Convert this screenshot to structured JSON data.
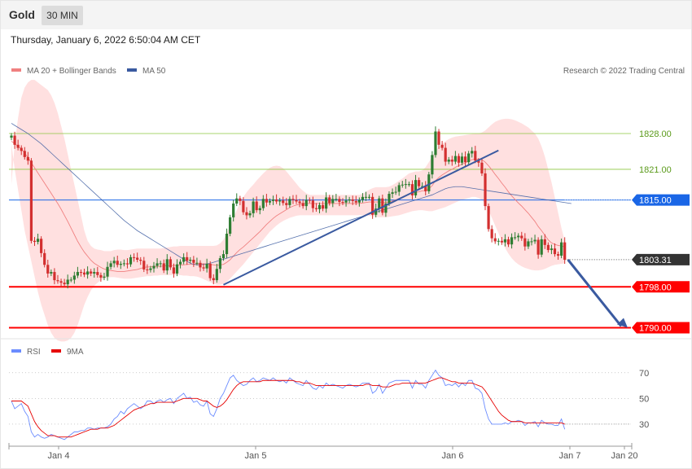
{
  "header": {
    "instrument": "Gold",
    "timeframe": "30 MIN",
    "datetime": "Thursday, January 6, 2022 6:50:04 AM CET"
  },
  "legend": {
    "ma20_label": "MA 20 + Bollinger Bands",
    "ma50_label": "MA 50",
    "copyright": "Research © 2022 Trading Central",
    "rsi_label": "RSI",
    "rsi_ma_label": "9MA"
  },
  "colors": {
    "bullish": "#2e7d32",
    "bearish": "#d32f2f",
    "ma20": "#f08080",
    "ma50": "#3a5aa0",
    "bands": "#ffd6d6",
    "support": "#ff0000",
    "pivot": "#1a66e6",
    "resistance": "#8cc63f",
    "trendline": "#3a5aa0",
    "rsi": "#6b8cff",
    "rsi_ma": "#e60000"
  },
  "levels": [
    {
      "value": "1828.00",
      "kind": "resistance"
    },
    {
      "value": "1821.00",
      "kind": "resistance"
    },
    {
      "value": "1815.00",
      "kind": "pivot"
    },
    {
      "value": "1803.31",
      "kind": "last"
    },
    {
      "value": "1798.00",
      "kind": "support"
    },
    {
      "value": "1790.00",
      "kind": "support"
    }
  ],
  "x_labels": [
    "Jan 4",
    "Jan 5",
    "Jan 6",
    "Jan 7",
    "Jan 20"
  ],
  "rsi_levels": [
    "70",
    "50",
    "30"
  ],
  "chart_data": {
    "type": "candlestick",
    "ylim": [
      1788,
      1839
    ],
    "rsi_ylim": [
      16,
      80
    ],
    "close": [
      1827.6,
      1825.8,
      1825.2,
      1824.6,
      1823.4,
      1822.7,
      1807.0,
      1806.8,
      1807.4,
      1804.6,
      1802.3,
      1800.6,
      1800.9,
      1799.3,
      1799.1,
      1798.8,
      1798.5,
      1799.4,
      1799.4,
      1800.2,
      1800.9,
      1800.8,
      1800.4,
      1801.0,
      1800.6,
      1800.9,
      1800.3,
      1799.8,
      1800.0,
      1801.9,
      1802.6,
      1803.1,
      1802.3,
      1802.5,
      1802.6,
      1802.4,
      1803.8,
      1803.7,
      1803.3,
      1803.1,
      1801.4,
      1801.3,
      1801.6,
      1802.1,
      1802.6,
      1802.6,
      1801.2,
      1803.4,
      1801.8,
      1800.6,
      1802.4,
      1802.9,
      1803.8,
      1803.1,
      1803.3,
      1802.7,
      1802.7,
      1801.8,
      1801.6,
      1802.5,
      1799.7,
      1799.3,
      1801.5,
      1803.6,
      1804.4,
      1808.4,
      1811.6,
      1814.3,
      1815.3,
      1814.8,
      1812.6,
      1812.0,
      1812.4,
      1814.7,
      1813.0,
      1813.4,
      1815.2,
      1814.5,
      1814.8,
      1815.1,
      1814.7,
      1814.9,
      1814.4,
      1814.0,
      1815.2,
      1815.0,
      1814.7,
      1814.4,
      1813.8,
      1815.0,
      1814.9,
      1813.4,
      1813.2,
      1814.0,
      1813.3,
      1815.5,
      1814.4,
      1815.2,
      1815.2,
      1814.6,
      1814.5,
      1814.9,
      1815.1,
      1814.8,
      1814.5,
      1815.0,
      1815.6,
      1815.6,
      1815.6,
      1812.1,
      1813.3,
      1815.3,
      1812.5,
      1814.3,
      1816.2,
      1816.5,
      1816.6,
      1817.9,
      1818.0,
      1818.1,
      1818.1,
      1815.9,
      1818.9,
      1817.7,
      1817.7,
      1816.7,
      1820.0,
      1823.8,
      1828.4,
      1825.8,
      1825.2,
      1822.5,
      1822.9,
      1822.5,
      1823.6,
      1822.3,
      1823.5,
      1822.4,
      1824.1,
      1824.6,
      1822.7,
      1822.3,
      1820.2,
      1813.8,
      1809.3,
      1807.5,
      1806.9,
      1807.0,
      1806.7,
      1807.3,
      1806.3,
      1807.7,
      1807.7,
      1808.0,
      1807.5,
      1805.9,
      1806.9,
      1806.9,
      1807.2,
      1804.3,
      1807.3,
      1806.2,
      1805.2,
      1805.5,
      1804.4,
      1804.1,
      1806.7,
      1803.3
    ],
    "open_first": 1827.2,
    "ma20": [
      1826.5,
      1826.0,
      1825.5,
      1825.0,
      1824.2,
      1823.3,
      1822.3,
      1821.3,
      1820.3,
      1819.3,
      1818.3,
      1817.3,
      1816.3,
      1815.3,
      1814.3,
      1813.2,
      1812.0,
      1810.8,
      1809.5,
      1808.2,
      1806.9,
      1805.8,
      1804.8,
      1804.0,
      1803.2,
      1802.6,
      1802.2,
      1801.8,
      1801.5,
      1801.3,
      1801.2,
      1801.1,
      1801.0,
      1801.0,
      1801.0,
      1801.1,
      1801.2,
      1801.3,
      1801.4,
      1801.6,
      1801.8,
      1801.9,
      1801.9,
      1802.0,
      1802.0,
      1802.0,
      1802.1,
      1802.1,
      1802.1,
      1802.2,
      1802.2,
      1802.3,
      1802.3,
      1802.4,
      1802.4,
      1802.5,
      1802.5,
      1802.5,
      1802.5,
      1802.5,
      1802.4,
      1802.3,
      1802.2,
      1802.3,
      1802.4,
      1802.8,
      1803.3,
      1804.0,
      1804.7,
      1805.3,
      1805.8,
      1806.4,
      1807.0,
      1807.6,
      1808.2,
      1808.8,
      1809.5,
      1810.2,
      1810.8,
      1811.4,
      1811.9,
      1812.3,
      1812.7,
      1813.1,
      1813.5,
      1813.8,
      1814.0,
      1814.2,
      1814.3,
      1814.3,
      1814.3,
      1814.3,
      1814.3,
      1814.3,
      1814.3,
      1814.3,
      1814.3,
      1814.3,
      1814.3,
      1814.3,
      1814.3,
      1814.3,
      1814.3,
      1814.3,
      1814.3,
      1814.3,
      1814.4,
      1814.5,
      1814.6,
      1814.6,
      1814.6,
      1814.6,
      1814.5,
      1814.5,
      1814.6,
      1814.8,
      1815.0,
      1815.3,
      1815.6,
      1815.9,
      1816.2,
      1816.3,
      1816.5,
      1816.6,
      1816.8,
      1816.8,
      1817.2,
      1817.8,
      1818.8,
      1819.4,
      1819.9,
      1820.3,
      1820.7,
      1821.0,
      1821.4,
      1821.7,
      1822.0,
      1822.3,
      1822.6,
      1822.9,
      1823.0,
      1823.0,
      1822.9,
      1822.4,
      1821.7,
      1820.9,
      1820.0,
      1819.2,
      1818.3,
      1817.5,
      1816.6,
      1815.8,
      1815.1,
      1814.4,
      1813.8,
      1813.1,
      1812.4,
      1811.6,
      1810.8,
      1809.8,
      1809.0,
      1808.1,
      1807.2,
      1806.6,
      1806.3,
      1806.1,
      1806.0,
      1805.8
    ],
    "ma50": [
      1830.0,
      1829.6,
      1829.2,
      1828.8,
      1828.4,
      1828.0,
      1827.5,
      1827.0,
      1826.5,
      1826.0,
      1825.4,
      1824.8,
      1824.2,
      1823.6,
      1823.0,
      1822.4,
      1821.8,
      1821.2,
      1820.6,
      1820.0,
      1819.4,
      1818.8,
      1818.2,
      1817.6,
      1817.0,
      1816.4,
      1815.8,
      1815.2,
      1814.6,
      1814.0,
      1813.4,
      1812.8,
      1812.2,
      1811.6,
      1811.0,
      1810.5,
      1810.0,
      1809.5,
      1809.0,
      1808.6,
      1808.2,
      1807.8,
      1807.4,
      1807.0,
      1806.6,
      1806.2,
      1805.8,
      1805.4,
      1805.0,
      1804.6,
      1804.2,
      1803.8,
      1803.4,
      1803.0,
      1802.6,
      1802.4,
      1802.3,
      1802.3,
      1802.4,
      1802.5,
      1802.6,
      1802.8,
      1803.0,
      1803.2,
      1803.4,
      1803.6,
      1803.8,
      1804.0,
      1804.2,
      1804.4,
      1804.6,
      1804.8,
      1805.0,
      1805.2,
      1805.4,
      1805.6,
      1805.8,
      1806.0,
      1806.2,
      1806.4,
      1806.6,
      1806.8,
      1807.0,
      1807.2,
      1807.4,
      1807.6,
      1807.8,
      1808.0,
      1808.2,
      1808.4,
      1808.6,
      1808.8,
      1809.0,
      1809.2,
      1809.4,
      1809.6,
      1809.8,
      1810.0,
      1810.2,
      1810.4,
      1810.6,
      1810.8,
      1811.0,
      1811.2,
      1811.4,
      1811.6,
      1811.8,
      1812.0,
      1812.2,
      1812.4,
      1812.6,
      1812.8,
      1813.0,
      1813.2,
      1813.4,
      1813.6,
      1813.8,
      1814.0,
      1814.2,
      1814.4,
      1814.6,
      1814.8,
      1815.0,
      1815.2,
      1815.4,
      1815.6,
      1815.8,
      1816.0,
      1816.3,
      1816.6,
      1816.9,
      1817.2,
      1817.4,
      1817.5,
      1817.6,
      1817.6,
      1817.6,
      1817.5,
      1817.4,
      1817.3,
      1817.2,
      1817.1,
      1817.0,
      1816.9,
      1816.8,
      1816.7,
      1816.6,
      1816.5,
      1816.4,
      1816.3,
      1816.2,
      1816.1,
      1816.0,
      1815.9,
      1815.8,
      1815.7,
      1815.6,
      1815.5,
      1815.4,
      1815.3,
      1815.2,
      1815.1,
      1815.0,
      1814.9,
      1814.8,
      1814.7,
      1814.6,
      1814.5,
      1814.4,
      1814.3
    ],
    "band_upper": [
      1818.0,
      1826.0,
      1831.0,
      1835.0,
      1837.0,
      1838.0,
      1838.5,
      1838.5,
      1838.0,
      1837.5,
      1837.0,
      1836.5,
      1835.5,
      1834.0,
      1832.0,
      1829.5,
      1827.0,
      1824.0,
      1821.0,
      1818.0,
      1815.0,
      1812.0,
      1809.0,
      1807.0,
      1806.0,
      1805.5,
      1805.3,
      1805.2,
      1805.0,
      1805.0,
      1805.0,
      1805.2,
      1805.3,
      1805.3,
      1805.2,
      1805.2,
      1805.3,
      1805.4,
      1805.5,
      1805.5,
      1805.5,
      1805.5,
      1805.5,
      1805.5,
      1805.5,
      1805.5,
      1805.6,
      1805.7,
      1805.8,
      1805.9,
      1805.9,
      1806.0,
      1806.0,
      1806.0,
      1806.0,
      1806.0,
      1806.0,
      1806.0,
      1806.0,
      1806.0,
      1806.0,
      1806.0,
      1806.1,
      1806.5,
      1807.2,
      1808.5,
      1810.0,
      1811.5,
      1813.0,
      1814.5,
      1815.6,
      1816.5,
      1817.3,
      1818.0,
      1818.8,
      1819.5,
      1820.2,
      1820.8,
      1821.3,
      1821.6,
      1821.7,
      1821.6,
      1821.2,
      1820.6,
      1819.8,
      1819.0,
      1818.2,
      1817.4,
      1816.8,
      1816.3,
      1816.0,
      1816.0,
      1816.0,
      1816.0,
      1816.0,
      1816.0,
      1816.0,
      1816.0,
      1816.0,
      1816.0,
      1816.0,
      1816.0,
      1816.0,
      1816.0,
      1816.0,
      1816.0,
      1816.2,
      1816.6,
      1817.0,
      1817.3,
      1817.5,
      1817.5,
      1817.5,
      1817.5,
      1817.6,
      1817.9,
      1818.3,
      1818.8,
      1819.2,
      1819.7,
      1820.2,
      1820.4,
      1820.6,
      1820.6,
      1820.8,
      1821.4,
      1822.4,
      1823.6,
      1824.6,
      1825.4,
      1826.0,
      1826.5,
      1826.9,
      1827.2,
      1827.4,
      1827.5,
      1827.6,
      1827.7,
      1827.8,
      1827.9,
      1828.0,
      1828.0,
      1828.2,
      1828.6,
      1829.2,
      1829.8,
      1830.3,
      1830.6,
      1830.8,
      1830.9,
      1830.9,
      1830.8,
      1830.6,
      1830.3,
      1830.0,
      1829.6,
      1829.2,
      1828.6,
      1828.0,
      1827.0,
      1825.5,
      1823.5,
      1821.0,
      1818.5,
      1815.5,
      1812.5,
      1809.5,
      1807.0
    ],
    "band_lower": [
      1826.0,
      1821.0,
      1817.0,
      1813.0,
      1809.0,
      1806.0,
      1803.0,
      1800.0,
      1797.0,
      1794.5,
      1792.5,
      1790.5,
      1789.0,
      1788.0,
      1787.5,
      1787.3,
      1787.3,
      1787.5,
      1788.0,
      1789.0,
      1790.5,
      1792.5,
      1794.5,
      1796.0,
      1797.3,
      1798.2,
      1798.8,
      1799.3,
      1799.6,
      1799.8,
      1799.9,
      1799.9,
      1799.8,
      1799.7,
      1799.6,
      1799.6,
      1799.6,
      1799.7,
      1799.8,
      1799.9,
      1800.0,
      1800.1,
      1800.1,
      1800.2,
      1800.2,
      1800.3,
      1800.3,
      1800.3,
      1800.3,
      1800.3,
      1800.3,
      1800.3,
      1800.2,
      1800.2,
      1800.1,
      1800.1,
      1800.0,
      1799.8,
      1799.5,
      1799.2,
      1798.9,
      1798.6,
      1798.4,
      1798.4,
      1798.6,
      1799.0,
      1799.6,
      1800.3,
      1801.0,
      1801.7,
      1802.4,
      1803.2,
      1804.0,
      1804.8,
      1805.6,
      1806.4,
      1807.2,
      1808.0,
      1808.8,
      1809.4,
      1810.0,
      1810.5,
      1810.9,
      1811.2,
      1811.5,
      1811.7,
      1811.9,
      1812.0,
      1812.0,
      1812.0,
      1812.0,
      1812.0,
      1812.0,
      1812.0,
      1812.0,
      1812.0,
      1812.0,
      1812.0,
      1812.0,
      1812.0,
      1812.0,
      1812.0,
      1812.0,
      1812.0,
      1812.0,
      1812.0,
      1812.0,
      1812.0,
      1811.9,
      1811.8,
      1811.7,
      1811.6,
      1811.6,
      1811.6,
      1811.7,
      1811.8,
      1811.9,
      1812.0,
      1812.2,
      1812.4,
      1812.6,
      1812.8,
      1812.9,
      1813.0,
      1813.0,
      1812.9,
      1812.8,
      1812.8,
      1813.0,
      1813.2,
      1813.4,
      1813.6,
      1813.9,
      1814.2,
      1814.5,
      1814.8,
      1815.0,
      1815.2,
      1815.4,
      1815.6,
      1815.6,
      1815.4,
      1815.0,
      1814.2,
      1813.0,
      1811.5,
      1810.0,
      1808.5,
      1807.0,
      1805.6,
      1804.5,
      1803.6,
      1802.9,
      1802.4,
      1802.0,
      1801.7,
      1801.5,
      1801.3,
      1801.2,
      1801.2,
      1801.3,
      1801.5,
      1801.8,
      1802.1,
      1802.3,
      1802.4,
      1802.5,
      1802.6
    ],
    "rsi": [
      48,
      42,
      44,
      46,
      40,
      36,
      24,
      20,
      22,
      20,
      19,
      20,
      22,
      21,
      20,
      19,
      18,
      20,
      22,
      24,
      24,
      25,
      25,
      27,
      27,
      26,
      27,
      27,
      27,
      28,
      30,
      34,
      36,
      40,
      38,
      42,
      44,
      46,
      44,
      42,
      44,
      48,
      48,
      46,
      48,
      49,
      47,
      49,
      50,
      46,
      50,
      52,
      54,
      50,
      51,
      47,
      48,
      45,
      44,
      48,
      38,
      36,
      42,
      50,
      54,
      60,
      66,
      68,
      64,
      62,
      60,
      61,
      64,
      66,
      63,
      64,
      66,
      65,
      64,
      66,
      64,
      63,
      64,
      62,
      66,
      64,
      62,
      61,
      60,
      64,
      61,
      58,
      57,
      60,
      58,
      62,
      60,
      61,
      60,
      59,
      58,
      60,
      61,
      60,
      59,
      60,
      62,
      62,
      62,
      54,
      56,
      61,
      54,
      58,
      62,
      63,
      64,
      64,
      64,
      64,
      64,
      58,
      64,
      61,
      61,
      58,
      64,
      68,
      72,
      68,
      66,
      60,
      61,
      60,
      62,
      59,
      62,
      60,
      64,
      64,
      58,
      57,
      54,
      42,
      34,
      30,
      30,
      30,
      30,
      31,
      30,
      32,
      32,
      33,
      32,
      29,
      31,
      31,
      32,
      28,
      33,
      31,
      30,
      30,
      29,
      29,
      34,
      26
    ],
    "rsi_ma": [
      48,
      48,
      48,
      48,
      46,
      44,
      38,
      32,
      28,
      25,
      23,
      21,
      21,
      21,
      20,
      20,
      20,
      20,
      20,
      21,
      22,
      23,
      24,
      25,
      26,
      26,
      26,
      27,
      27,
      27,
      28,
      29,
      31,
      33,
      35,
      37,
      39,
      41,
      42,
      43,
      44,
      45,
      46,
      46,
      47,
      47,
      47,
      47,
      47,
      47,
      48,
      49,
      50,
      50,
      50,
      50,
      50,
      49,
      48,
      48,
      46,
      44,
      43,
      44,
      46,
      49,
      53,
      57,
      60,
      62,
      63,
      63,
      63,
      63,
      63,
      63,
      64,
      64,
      64,
      64,
      64,
      64,
      64,
      64,
      64,
      64,
      63,
      63,
      62,
      62,
      62,
      61,
      60,
      60,
      60,
      60,
      60,
      60,
      60,
      60,
      60,
      60,
      60,
      60,
      60,
      60,
      60,
      61,
      61,
      60,
      60,
      60,
      59,
      59,
      59,
      60,
      61,
      61,
      62,
      62,
      62,
      62,
      62,
      62,
      62,
      62,
      63,
      64,
      65,
      66,
      66,
      65,
      64,
      63,
      63,
      62,
      62,
      62,
      62,
      62,
      61,
      60,
      59,
      56,
      52,
      48,
      44,
      40,
      37,
      35,
      33,
      32,
      32,
      32,
      32,
      31,
      31,
      31,
      31,
      31,
      31,
      31,
      31,
      31,
      31,
      31,
      31,
      30
    ]
  }
}
